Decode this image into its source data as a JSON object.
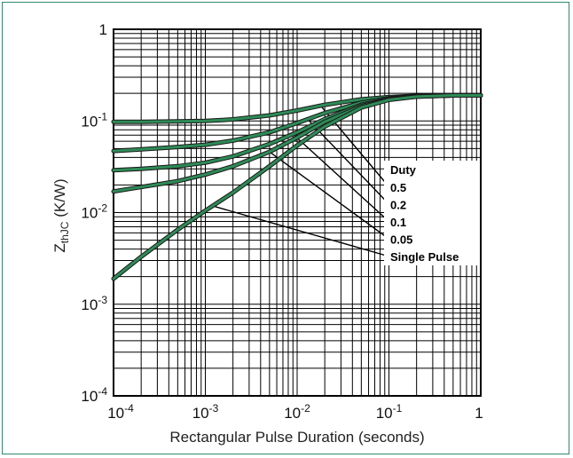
{
  "chart_data": {
    "type": "line",
    "title": "",
    "xlabel": "Rectangular Pulse Duration (seconds)",
    "ylabel_main": "Z",
    "ylabel_sub": "thJC",
    "ylabel_unit": " (K/W)",
    "x_scale": "log",
    "y_scale": "log",
    "xlim": [
      0.0001,
      1
    ],
    "ylim": [
      0.0001,
      1
    ],
    "grid": true,
    "x_ticks": [
      {
        "value": 0.0001,
        "base": "10",
        "exp": "-4"
      },
      {
        "value": 0.001,
        "base": "10",
        "exp": "-3"
      },
      {
        "value": 0.01,
        "base": "10",
        "exp": "-2"
      },
      {
        "value": 0.1,
        "base": "10",
        "exp": "-1"
      },
      {
        "value": 1,
        "base": "1",
        "exp": ""
      }
    ],
    "y_ticks": [
      {
        "value": 0.0001,
        "base": "10",
        "exp": "-4"
      },
      {
        "value": 0.001,
        "base": "10",
        "exp": "-3"
      },
      {
        "value": 0.01,
        "base": "10",
        "exp": "-2"
      },
      {
        "value": 0.1,
        "base": "10",
        "exp": "-1"
      },
      {
        "value": 1,
        "base": "1",
        "exp": ""
      }
    ],
    "legend_title": "Duty",
    "curve_color": "#2e8b57",
    "curve_edge_color": "#1a1a1a",
    "series": [
      {
        "name": "0.5",
        "x": [
          0.0001,
          0.0002,
          0.0005,
          0.001,
          0.002,
          0.005,
          0.01,
          0.02,
          0.05,
          0.1,
          0.2,
          0.5,
          1
        ],
        "y": [
          0.098,
          0.098,
          0.099,
          0.1,
          0.104,
          0.115,
          0.13,
          0.15,
          0.172,
          0.182,
          0.188,
          0.19,
          0.19
        ]
      },
      {
        "name": "0.2",
        "x": [
          0.0001,
          0.0002,
          0.0005,
          0.001,
          0.002,
          0.005,
          0.01,
          0.02,
          0.05,
          0.1,
          0.2,
          0.5,
          1
        ],
        "y": [
          0.047,
          0.049,
          0.052,
          0.055,
          0.061,
          0.075,
          0.095,
          0.122,
          0.158,
          0.177,
          0.187,
          0.19,
          0.19
        ]
      },
      {
        "name": "0.1",
        "x": [
          0.0001,
          0.0002,
          0.0005,
          0.001,
          0.002,
          0.005,
          0.01,
          0.02,
          0.05,
          0.1,
          0.2,
          0.5,
          1
        ],
        "y": [
          0.029,
          0.03,
          0.032,
          0.035,
          0.041,
          0.056,
          0.075,
          0.105,
          0.15,
          0.174,
          0.186,
          0.19,
          0.19
        ]
      },
      {
        "name": "0.05",
        "x": [
          0.0001,
          0.0002,
          0.0005,
          0.001,
          0.002,
          0.005,
          0.01,
          0.02,
          0.05,
          0.1,
          0.2,
          0.5,
          1
        ],
        "y": [
          0.017,
          0.019,
          0.022,
          0.026,
          0.032,
          0.046,
          0.066,
          0.098,
          0.145,
          0.172,
          0.185,
          0.19,
          0.19
        ]
      },
      {
        "name": "Single Pulse",
        "x": [
          0.0001,
          0.0002,
          0.0005,
          0.001,
          0.002,
          0.005,
          0.01,
          0.02,
          0.05,
          0.1,
          0.2,
          0.5,
          1
        ],
        "y": [
          0.0019,
          0.0033,
          0.0065,
          0.0105,
          0.0165,
          0.032,
          0.054,
          0.087,
          0.14,
          0.17,
          0.184,
          0.19,
          0.19
        ]
      }
    ]
  }
}
